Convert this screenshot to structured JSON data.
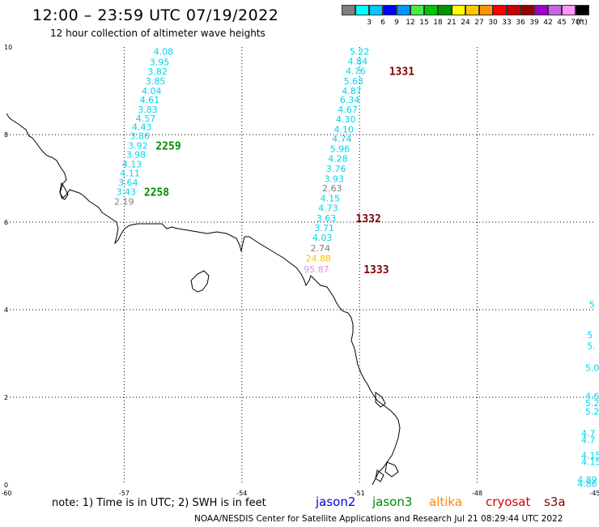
{
  "header": {
    "title": "12:00 – 23:59 UTC 07/19/2022",
    "subtitle": "12 hour collection of altimeter wave heights"
  },
  "colorbar": {
    "swatches": [
      {
        "color": "#808080",
        "label": ""
      },
      {
        "color": "#00ffff",
        "label": "3"
      },
      {
        "color": "#00c8ff",
        "label": "6"
      },
      {
        "color": "#0000ff",
        "label": "9"
      },
      {
        "color": "#0096ff",
        "label": "12"
      },
      {
        "color": "#44ee44",
        "label": "15"
      },
      {
        "color": "#00c800",
        "label": "18"
      },
      {
        "color": "#009600",
        "label": "21"
      },
      {
        "color": "#ffff00",
        "label": "24"
      },
      {
        "color": "#ffc800",
        "label": "27"
      },
      {
        "color": "#ff9600",
        "label": "30"
      },
      {
        "color": "#ff0000",
        "label": "33"
      },
      {
        "color": "#c80000",
        "label": "36"
      },
      {
        "color": "#960000",
        "label": "39"
      },
      {
        "color": "#a000c8",
        "label": "42"
      },
      {
        "color": "#c864e6",
        "label": "45"
      },
      {
        "color": "#ff96ff",
        "label": "70"
      },
      {
        "color": "#000000",
        "label": "(ft)"
      }
    ]
  },
  "axes": {
    "lon_labels": [
      "-60",
      "-57",
      "-54",
      "-51",
      "-48",
      "-45"
    ],
    "lat_labels": [
      "0",
      "2",
      "4",
      "6",
      "8",
      "10"
    ]
  },
  "tracks": [
    {
      "id": "track-west",
      "values": [
        {
          "lon": -56.0,
          "lat": 9.82,
          "v": "4.08",
          "color": "#00d4ee"
        },
        {
          "lon": -56.1,
          "lat": 9.58,
          "v": "3.95",
          "color": "#00d4ee"
        },
        {
          "lon": -56.15,
          "lat": 9.37,
          "v": "3.82",
          "color": "#00d4ee"
        },
        {
          "lon": -56.2,
          "lat": 9.15,
          "v": "3.85",
          "color": "#00d4ee"
        },
        {
          "lon": -56.3,
          "lat": 8.93,
          "v": "4.04",
          "color": "#00d4ee"
        },
        {
          "lon": -56.35,
          "lat": 8.72,
          "v": "4.61",
          "color": "#00d4ee"
        },
        {
          "lon": -56.4,
          "lat": 8.5,
          "v": "3.83",
          "color": "#00d4ee"
        },
        {
          "lon": -56.45,
          "lat": 8.3,
          "v": "4.57",
          "color": "#00d4ee"
        },
        {
          "lon": -56.55,
          "lat": 8.1,
          "v": "4.43",
          "color": "#00d4ee"
        },
        {
          "lon": -56.6,
          "lat": 7.9,
          "v": "3.86",
          "color": "#00d4ee"
        },
        {
          "lon": -56.65,
          "lat": 7.68,
          "v": "3.92",
          "color": "#00d4ee"
        },
        {
          "lon": -56.7,
          "lat": 7.47,
          "v": "3.98",
          "color": "#00d4ee"
        },
        {
          "lon": -56.8,
          "lat": 7.25,
          "v": "4.13",
          "color": "#00d4ee"
        },
        {
          "lon": -56.85,
          "lat": 7.05,
          "v": "4.11",
          "color": "#00d4ee"
        },
        {
          "lon": -56.9,
          "lat": 6.83,
          "v": "3.64",
          "color": "#00d4ee"
        },
        {
          "lon": -56.95,
          "lat": 6.62,
          "v": "3.43",
          "color": "#00d4ee"
        },
        {
          "lon": -57.0,
          "lat": 6.4,
          "v": "2.19",
          "color": "#808080"
        }
      ]
    },
    {
      "id": "track-east",
      "values": [
        {
          "lon": -51.0,
          "lat": 9.82,
          "v": "5.22",
          "color": "#00d4ee"
        },
        {
          "lon": -51.05,
          "lat": 9.6,
          "v": "4.84",
          "color": "#00d4ee"
        },
        {
          "lon": -51.1,
          "lat": 9.38,
          "v": "4.76",
          "color": "#00d4ee"
        },
        {
          "lon": -51.15,
          "lat": 9.15,
          "v": "5.63",
          "color": "#00d4ee"
        },
        {
          "lon": -51.2,
          "lat": 8.93,
          "v": "4.87",
          "color": "#00d4ee"
        },
        {
          "lon": -51.25,
          "lat": 8.72,
          "v": "6.34",
          "color": "#00d4ee"
        },
        {
          "lon": -51.3,
          "lat": 8.5,
          "v": "4.67",
          "color": "#00d4ee"
        },
        {
          "lon": -51.35,
          "lat": 8.28,
          "v": "4.30",
          "color": "#00d4ee"
        },
        {
          "lon": -51.4,
          "lat": 8.05,
          "v": "4.10",
          "color": "#00d4ee"
        },
        {
          "lon": -51.45,
          "lat": 7.83,
          "v": "4.74",
          "color": "#00d4ee"
        },
        {
          "lon": -51.5,
          "lat": 7.6,
          "v": "5.96",
          "color": "#00d4ee"
        },
        {
          "lon": -51.55,
          "lat": 7.38,
          "v": "4.28",
          "color": "#00d4ee"
        },
        {
          "lon": -51.6,
          "lat": 7.15,
          "v": "3.76",
          "color": "#00d4ee"
        },
        {
          "lon": -51.65,
          "lat": 6.92,
          "v": "3.93",
          "color": "#00d4ee"
        },
        {
          "lon": -51.7,
          "lat": 6.7,
          "v": "2.63",
          "color": "#808080"
        },
        {
          "lon": -51.75,
          "lat": 6.47,
          "v": "4.15",
          "color": "#00d4ee"
        },
        {
          "lon": -51.8,
          "lat": 6.25,
          "v": "4.73",
          "color": "#00d4ee"
        },
        {
          "lon": -51.85,
          "lat": 6.02,
          "v": "3.63",
          "color": "#00d4ee"
        },
        {
          "lon": -51.9,
          "lat": 5.8,
          "v": "3.71",
          "color": "#00d4ee"
        },
        {
          "lon": -51.95,
          "lat": 5.57,
          "v": "4.03",
          "color": "#00d4ee"
        },
        {
          "lon": -52.0,
          "lat": 5.33,
          "v": "2.74",
          "color": "#808080"
        },
        {
          "lon": -52.05,
          "lat": 5.1,
          "v": "24.88",
          "color": "#f0c800"
        },
        {
          "lon": -52.1,
          "lat": 4.85,
          "v": "95.87",
          "color": "#e090e0"
        }
      ]
    }
  ],
  "time_labels": [
    {
      "lon": -56.65,
      "lat": 7.68,
      "text": "2259",
      "color": "#008800"
    },
    {
      "lon": -56.95,
      "lat": 6.62,
      "text": "2258",
      "color": "#008800"
    },
    {
      "lon": -50.7,
      "lat": 9.38,
      "text": "1331",
      "color": "#800000"
    },
    {
      "lon": -51.55,
      "lat": 6.02,
      "text": "1332",
      "color": "#800000"
    },
    {
      "lon": -51.35,
      "lat": 4.85,
      "text": "1333",
      "color": "#800000"
    }
  ],
  "edge_labels": [
    {
      "lon": -45.15,
      "lat": 4.05,
      "text": "5"
    },
    {
      "lon": -45.2,
      "lat": 3.35,
      "text": "5"
    },
    {
      "lon": -45.2,
      "lat": 3.1,
      "text": "5."
    },
    {
      "lon": -45.25,
      "lat": 2.6,
      "text": "5.0"
    },
    {
      "lon": -45.25,
      "lat": 1.95,
      "text": "4.6"
    },
    {
      "lon": -45.25,
      "lat": 1.8,
      "text": "5.2"
    },
    {
      "lon": -45.25,
      "lat": 1.6,
      "text": "5.2"
    },
    {
      "lon": -45.35,
      "lat": 1.1,
      "text": "4.7"
    },
    {
      "lon": -45.35,
      "lat": 0.95,
      "text": "4.7"
    },
    {
      "lon": -45.35,
      "lat": 0.6,
      "text": "4.15"
    },
    {
      "lon": -45.35,
      "lat": 0.45,
      "text": "4.15"
    },
    {
      "lon": -45.45,
      "lat": 0.05,
      "text": "4.89"
    },
    {
      "lon": -45.45,
      "lat": -0.05,
      "text": "4.86"
    }
  ],
  "footer": {
    "note": "note: 1) Time is in UTC; 2) SWH is in feet",
    "satellites": [
      {
        "name": "jason2",
        "color": "#0000dd"
      },
      {
        "name": "jason3",
        "color": "#008800"
      },
      {
        "name": "altika",
        "color": "#ff8800"
      },
      {
        "name": "cryosat",
        "color": "#dd0000"
      },
      {
        "name": "s3a",
        "color": "#880000"
      }
    ],
    "credit": "NOAA/NESDIS Center for Satellite Applications and Research   Jul 21 08:29:44 UTC 2022"
  }
}
